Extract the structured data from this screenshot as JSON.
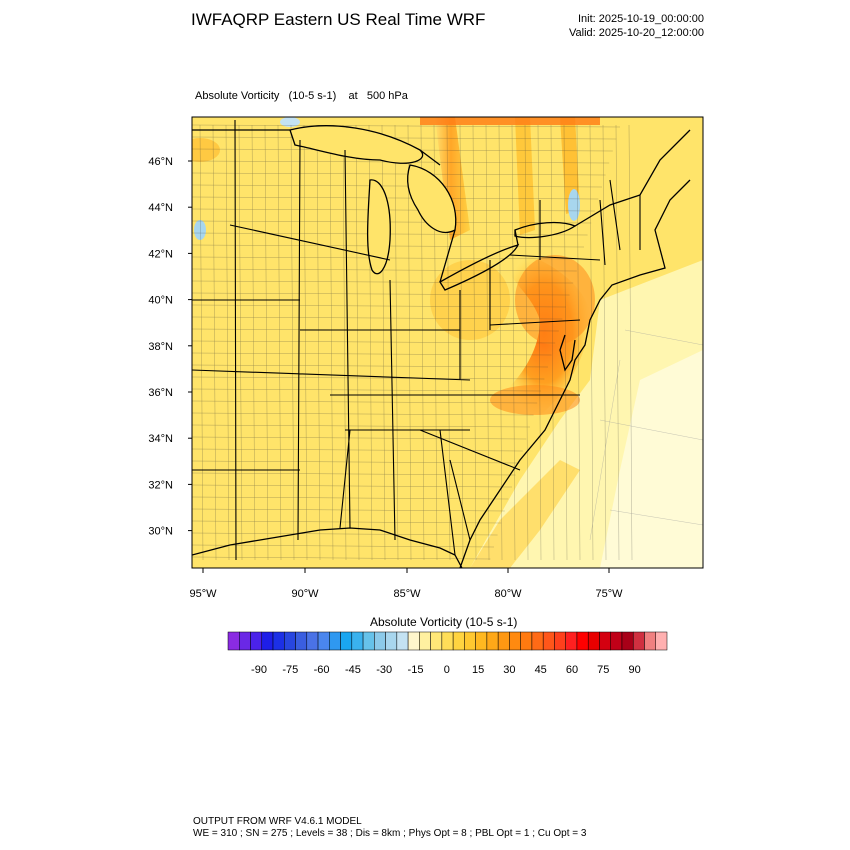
{
  "header": {
    "title": "IWFAQRP Eastern US Real Time WRF",
    "init": "Init: 2025-10-19_00:00:00",
    "valid": "Valid: 2025-10-20_12:00:00"
  },
  "field": {
    "name": "Absolute Vorticity",
    "units": "(10-5 s-1)",
    "level_prefix": "at",
    "level": "500 hPa"
  },
  "map": {
    "lat_labels": [
      "46°N",
      "44°N",
      "42°N",
      "40°N",
      "38°N",
      "36°N",
      "34°N",
      "32°N",
      "30°N"
    ],
    "lon_labels": [
      "95°W",
      "90°W",
      "85°W",
      "80°W",
      "75°W"
    ]
  },
  "colorbar": {
    "title": "Absolute Vorticity  (10-5 s-1)",
    "tick_labels": [
      "-90",
      "-75",
      "-60",
      "-45",
      "-30",
      "-15",
      "0",
      "15",
      "30",
      "45",
      "60",
      "75",
      "90"
    ],
    "colors": [
      "#8a2be2",
      "#6a28e6",
      "#4b22ea",
      "#1e1ee8",
      "#1c30e6",
      "#2846e0",
      "#3a5ee0",
      "#4a72e6",
      "#4a86ee",
      "#2f98f0",
      "#1aa6f0",
      "#3ab2ee",
      "#66c2ea",
      "#8ccaea",
      "#a8d6ee",
      "#c4e2f2",
      "#fff6cc",
      "#fff0a0",
      "#ffe878",
      "#ffde58",
      "#ffd440",
      "#ffc830",
      "#ffb820",
      "#ffa818",
      "#ff9812",
      "#ff8a10",
      "#ff7a10",
      "#ff6a16",
      "#ff561a",
      "#ff401c",
      "#ff2020",
      "#ff0000",
      "#e80000",
      "#d40010",
      "#c00018",
      "#a80018",
      "#d03040",
      "#f08080",
      "#ffb0b0"
    ]
  },
  "footer": {
    "line1": "OUTPUT FROM WRF V4.6.1 MODEL",
    "line2": "WE = 310 ; SN = 275 ; Levels = 38 ; Dis = 8km ; Phys Opt = 8 ; PBL Opt = 1 ; Cu Opt = 3"
  }
}
